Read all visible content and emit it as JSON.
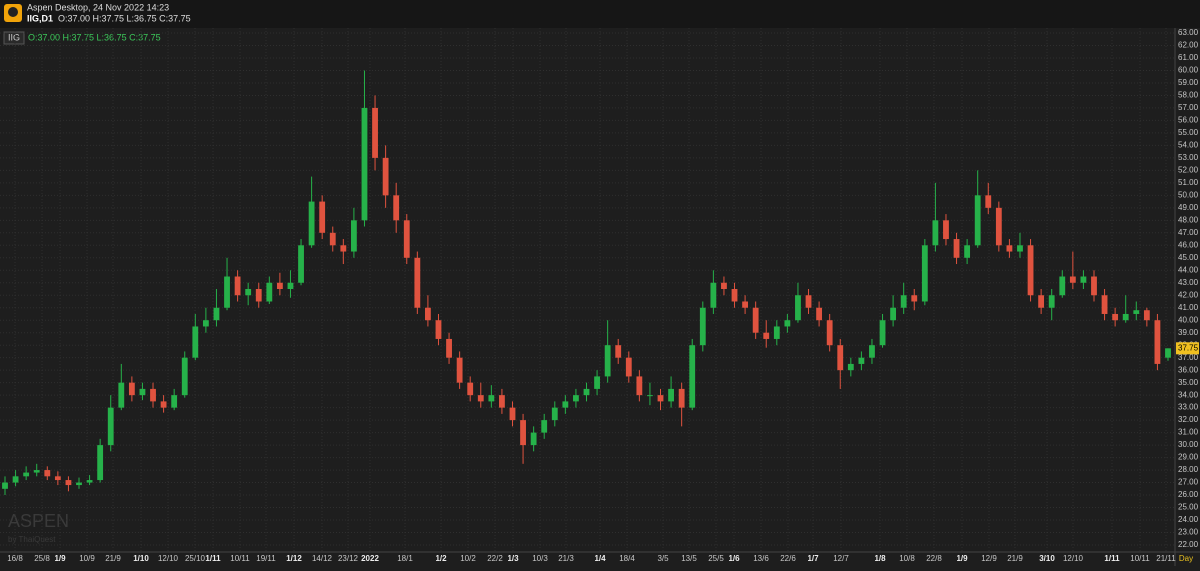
{
  "header": {
    "app_title": "Aspen Desktop, 24 Nov 2022 14:23",
    "symbol": "IIG,D1",
    "ohlc_text": "O:37.00 H:37.75 L:36.75 C:37.75"
  },
  "watermark": {
    "brand": "ASPEN",
    "by": "by ThaiQuest"
  },
  "chart_data": {
    "type": "candlestick",
    "legend_symbol": "IIG",
    "legend_text": "O:37.00 H:37.75 L:36.75 C:37.75",
    "up_color": "#26b24a",
    "down_color": "#e0533f",
    "grid": true,
    "last_price_label": "37.75",
    "x_unit_label": "Day",
    "x_labels": [
      "16/8",
      "25/8",
      "1/9",
      "10/9",
      "21/9",
      "1/10",
      "12/10",
      "25/10",
      "1/11",
      "10/11",
      "19/11",
      "1/12",
      "14/12",
      "23/12",
      "2022",
      "18/1",
      "1/2",
      "10/2",
      "22/2",
      "1/3",
      "10/3",
      "21/3",
      "1/4",
      "18/4",
      "3/5",
      "13/5",
      "25/5",
      "1/6",
      "13/6",
      "22/6",
      "1/7",
      "12/7",
      "1/8",
      "10/8",
      "22/8",
      "1/9",
      "12/9",
      "21/9",
      "3/10",
      "12/10",
      "1/11",
      "10/11",
      "21/11"
    ],
    "ylim": [
      22,
      63
    ],
    "yticks": [
      {
        "value": 63,
        "label": "63.00"
      },
      {
        "value": 62,
        "label": "62.00"
      },
      {
        "value": 61,
        "label": "61.00"
      },
      {
        "value": 60,
        "label": "60.00"
      },
      {
        "value": 59,
        "label": "59.00"
      },
      {
        "value": 58,
        "label": "58.00"
      },
      {
        "value": 57,
        "label": "57.00"
      },
      {
        "value": 56,
        "label": "56.00"
      },
      {
        "value": 55,
        "label": "55.00"
      },
      {
        "value": 54,
        "label": "54.00"
      },
      {
        "value": 53,
        "label": "53.00"
      },
      {
        "value": 52,
        "label": "52.00"
      },
      {
        "value": 51,
        "label": "51.00"
      },
      {
        "value": 50,
        "label": "50.00"
      },
      {
        "value": 49,
        "label": "49.00"
      },
      {
        "value": 48,
        "label": "48.00"
      },
      {
        "value": 47,
        "label": "47.00"
      },
      {
        "value": 46,
        "label": "46.00"
      },
      {
        "value": 45,
        "label": "45.00"
      },
      {
        "value": 44,
        "label": "44.00"
      },
      {
        "value": 43,
        "label": "43.00"
      },
      {
        "value": 42,
        "label": "42.00"
      },
      {
        "value": 41,
        "label": "41.00"
      },
      {
        "value": 40,
        "label": "40.00"
      },
      {
        "value": 39,
        "label": "39.00"
      },
      {
        "value": 38,
        "label": "38.00"
      },
      {
        "value": 37,
        "label": "37.00"
      },
      {
        "value": 36,
        "label": "36.00"
      },
      {
        "value": 35,
        "label": "35.00"
      },
      {
        "value": 34,
        "label": "34.00"
      },
      {
        "value": 33,
        "label": "33.00"
      },
      {
        "value": 32,
        "label": "32.00"
      },
      {
        "value": 31,
        "label": "31.00"
      },
      {
        "value": 30,
        "label": "30.00"
      },
      {
        "value": 29,
        "label": "29.00"
      },
      {
        "value": 28,
        "label": "28.00"
      },
      {
        "value": 27,
        "label": "27.00"
      },
      {
        "value": 26,
        "label": "26.00"
      },
      {
        "value": 25,
        "label": "25.00"
      },
      {
        "value": 24,
        "label": "24.00"
      },
      {
        "value": 23,
        "label": "23.00"
      },
      {
        "value": 22,
        "label": "22.00"
      }
    ],
    "ohlc": [
      [
        26.5,
        27.5,
        26,
        27
      ],
      [
        27,
        28,
        26.7,
        27.5
      ],
      [
        27.5,
        28.3,
        27.2,
        27.8
      ],
      [
        27.8,
        28.5,
        27.5,
        28
      ],
      [
        28,
        28.3,
        27.2,
        27.5
      ],
      [
        27.5,
        27.9,
        26.8,
        27.2
      ],
      [
        27.2,
        27.5,
        26.3,
        26.8
      ],
      [
        26.8,
        27.4,
        26.5,
        27
      ],
      [
        27,
        27.6,
        26.8,
        27.2
      ],
      [
        27.2,
        30.5,
        27,
        30
      ],
      [
        30,
        34,
        29.5,
        33
      ],
      [
        33,
        36.5,
        32.8,
        35
      ],
      [
        35,
        35.5,
        33.5,
        34
      ],
      [
        34,
        35,
        33.6,
        34.5
      ],
      [
        34.5,
        35,
        33,
        33.5
      ],
      [
        33.5,
        34,
        32.6,
        33
      ],
      [
        33,
        34.5,
        32.8,
        34
      ],
      [
        34,
        37.5,
        33.8,
        37
      ],
      [
        37,
        40.5,
        36.8,
        39.5
      ],
      [
        39.5,
        41,
        39,
        40
      ],
      [
        40,
        42.5,
        39.5,
        41
      ],
      [
        41,
        45,
        40.8,
        43.5
      ],
      [
        43.5,
        44,
        41.5,
        42
      ],
      [
        42,
        43,
        41.2,
        42.5
      ],
      [
        42.5,
        43,
        41,
        41.5
      ],
      [
        41.5,
        43.5,
        41.3,
        43
      ],
      [
        43,
        43.8,
        42,
        42.5
      ],
      [
        42.5,
        44,
        41.8,
        43
      ],
      [
        43,
        46.5,
        42.8,
        46
      ],
      [
        46,
        51.5,
        45.8,
        49.5
      ],
      [
        49.5,
        50,
        46.5,
        47
      ],
      [
        47,
        47.5,
        45.5,
        46
      ],
      [
        46,
        46.5,
        44.5,
        45.5
      ],
      [
        45.5,
        49,
        45,
        48
      ],
      [
        48,
        60,
        47.5,
        57
      ],
      [
        57,
        58,
        52,
        53
      ],
      [
        53,
        54,
        49,
        50
      ],
      [
        50,
        51,
        47,
        48
      ],
      [
        48,
        48.5,
        44.5,
        45
      ],
      [
        45,
        45.5,
        40.5,
        41
      ],
      [
        41,
        42,
        39.5,
        40
      ],
      [
        40,
        40.5,
        38,
        38.5
      ],
      [
        38.5,
        39,
        36.5,
        37
      ],
      [
        37,
        37.5,
        34.5,
        35
      ],
      [
        35,
        35.5,
        33.5,
        34
      ],
      [
        34,
        35,
        33,
        33.5
      ],
      [
        33.5,
        34.8,
        33,
        34
      ],
      [
        34,
        34.5,
        32.5,
        33
      ],
      [
        33,
        33.5,
        31.5,
        32
      ],
      [
        32,
        32.5,
        28.5,
        30
      ],
      [
        30,
        31.5,
        29.5,
        31
      ],
      [
        31,
        32.5,
        30.5,
        32
      ],
      [
        32,
        33.5,
        31.5,
        33
      ],
      [
        33,
        34,
        32.5,
        33.5
      ],
      [
        33.5,
        34.5,
        33,
        34
      ],
      [
        34,
        35,
        33.5,
        34.5
      ],
      [
        34.5,
        36,
        34,
        35.5
      ],
      [
        35.5,
        40,
        35,
        38
      ],
      [
        38,
        38.5,
        36.5,
        37
      ],
      [
        37,
        37.5,
        35,
        35.5
      ],
      [
        35.5,
        36,
        33.5,
        34
      ],
      [
        34,
        35,
        33.2,
        34
      ],
      [
        34,
        34.5,
        32.8,
        33.5
      ],
      [
        33.5,
        35.5,
        33,
        34.5
      ],
      [
        34.5,
        35,
        31.5,
        33
      ],
      [
        33,
        38.5,
        32.8,
        38
      ],
      [
        38,
        41.5,
        37.5,
        41
      ],
      [
        41,
        44,
        40.5,
        43
      ],
      [
        43,
        43.5,
        42,
        42.5
      ],
      [
        42.5,
        43,
        41,
        41.5
      ],
      [
        41.5,
        42,
        40.5,
        41
      ],
      [
        41,
        41.5,
        38.5,
        39
      ],
      [
        39,
        40,
        37.8,
        38.5
      ],
      [
        38.5,
        40,
        38,
        39.5
      ],
      [
        39.5,
        40.5,
        39,
        40
      ],
      [
        40,
        43,
        39.8,
        42
      ],
      [
        42,
        42.5,
        40.5,
        41
      ],
      [
        41,
        41.5,
        39.5,
        40
      ],
      [
        40,
        40.5,
        37.5,
        38
      ],
      [
        38,
        38.5,
        34.5,
        36
      ],
      [
        36,
        37,
        35.5,
        36.5
      ],
      [
        36.5,
        37.5,
        36,
        37
      ],
      [
        37,
        38.5,
        36.5,
        38
      ],
      [
        38,
        40.5,
        37.8,
        40
      ],
      [
        40,
        42,
        39.5,
        41
      ],
      [
        41,
        43,
        40.5,
        42
      ],
      [
        42,
        42.5,
        40.8,
        41.5
      ],
      [
        41.5,
        46.5,
        41.2,
        46
      ],
      [
        46,
        51,
        45.5,
        48
      ],
      [
        48,
        48.5,
        46,
        46.5
      ],
      [
        46.5,
        47,
        44.5,
        45
      ],
      [
        45,
        46.5,
        44.5,
        46
      ],
      [
        46,
        52,
        45.8,
        50
      ],
      [
        50,
        51,
        48.5,
        49
      ],
      [
        49,
        49.5,
        45.5,
        46
      ],
      [
        46,
        46.5,
        45,
        45.5
      ],
      [
        45.5,
        47,
        45,
        46
      ],
      [
        46,
        46.5,
        41.5,
        42
      ],
      [
        42,
        42.5,
        40.5,
        41
      ],
      [
        41,
        42.5,
        40,
        42
      ],
      [
        42,
        44,
        41.8,
        43.5
      ],
      [
        43.5,
        45.5,
        42.5,
        43
      ],
      [
        43,
        44,
        42.5,
        43.5
      ],
      [
        43.5,
        44,
        41.5,
        42
      ],
      [
        42,
        42.5,
        40,
        40.5
      ],
      [
        40.5,
        41,
        39.5,
        40
      ],
      [
        40,
        42,
        39.8,
        40.5
      ],
      [
        40.5,
        41.5,
        40,
        40.8
      ],
      [
        40.8,
        41,
        39.5,
        40
      ],
      [
        40,
        40.5,
        36,
        36.5
      ],
      [
        37,
        37.75,
        36.75,
        37.75
      ]
    ]
  }
}
